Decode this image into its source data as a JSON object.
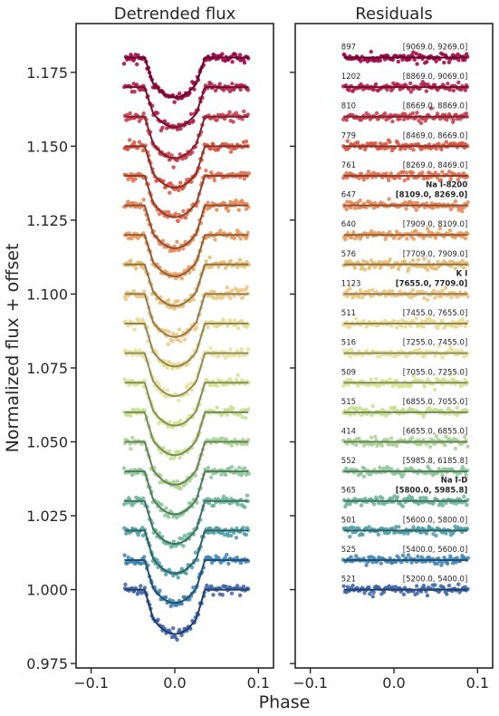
{
  "figure": {
    "ylabel": "Normalized flux + offset",
    "xlabel": "Phase"
  },
  "chart_data": [
    {
      "type": "scatter",
      "title": "Detrended flux",
      "xlim": [
        -0.118,
        0.118
      ],
      "ylim": [
        0.9735,
        1.1915
      ],
      "xticks": [
        -0.1,
        0.0,
        0.1
      ],
      "xtick_labels": [
        "−0.1",
        "0.0",
        "0.1"
      ],
      "yticks": [
        0.975,
        1.0,
        1.025,
        1.05,
        1.075,
        1.1,
        1.125,
        1.15,
        1.175
      ],
      "ytick_labels": [
        "0.975",
        "1.000",
        "1.025",
        "1.050",
        "1.075",
        "1.100",
        "1.125",
        "1.150",
        "1.175"
      ],
      "phase_range": [
        -0.06,
        0.088
      ],
      "transit": {
        "t1": -0.036,
        "t2": -0.026,
        "t3": 0.026,
        "t4": 0.036
      },
      "grid": false
    },
    {
      "type": "scatter",
      "title": "Residuals",
      "xlim": [
        -0.118,
        0.118
      ],
      "ylim": [
        0.9735,
        1.1915
      ],
      "xticks": [
        -0.1,
        0.0,
        0.1
      ],
      "xtick_labels": [
        "−0.1",
        "0.0",
        "0.1"
      ],
      "phase_range": [
        -0.06,
        0.088
      ],
      "grid": false
    }
  ],
  "series": [
    {
      "offset": 1.18,
      "depth": 0.0135,
      "rms": 897,
      "wavelength": "[9069.0, 9269.0]",
      "color": "#9e0142"
    },
    {
      "offset": 1.17,
      "depth": 0.0135,
      "rms": 1202,
      "wavelength": "[8869.0, 9069.0]",
      "color": "#b31b47"
    },
    {
      "offset": 1.16,
      "depth": 0.014,
      "rms": 810,
      "wavelength": "[8669.0, 8869.0]",
      "color": "#c8394a"
    },
    {
      "offset": 1.15,
      "depth": 0.014,
      "rms": 779,
      "wavelength": "[8469.0, 8669.0]",
      "color": "#d8533e"
    },
    {
      "offset": 1.14,
      "depth": 0.014,
      "rms": 761,
      "wavelength": "[8269.0, 8469.0]",
      "color": "#e26a48"
    },
    {
      "offset": 1.13,
      "depth": 0.0145,
      "rms": 647,
      "wavelength": "[8109.0, 8269.0]",
      "color": "#e58450",
      "feature": "Na I-8200"
    },
    {
      "offset": 1.12,
      "depth": 0.014,
      "rms": 640,
      "wavelength": "[7909.0, 8109.0]",
      "color": "#ea9a58"
    },
    {
      "offset": 1.11,
      "depth": 0.014,
      "rms": 576,
      "wavelength": "[7709.0, 7909.0]",
      "color": "#e8ba6c"
    },
    {
      "offset": 1.1,
      "depth": 0.0145,
      "rms": 1123,
      "wavelength": "[7655.0, 7709.0]",
      "color": "#edc680",
      "feature": "K I"
    },
    {
      "offset": 1.09,
      "depth": 0.0145,
      "rms": 511,
      "wavelength": "[7455.0, 7655.0]",
      "color": "#e9d98e"
    },
    {
      "offset": 1.08,
      "depth": 0.0145,
      "rms": 516,
      "wavelength": "[7255.0, 7455.0]",
      "color": "#e6e39a"
    },
    {
      "offset": 1.07,
      "depth": 0.0145,
      "rms": 509,
      "wavelength": "[7055.0, 7255.0]",
      "color": "#d6e392"
    },
    {
      "offset": 1.06,
      "depth": 0.0145,
      "rms": 515,
      "wavelength": "[6855.0, 7055.0]",
      "color": "#c4df8e"
    },
    {
      "offset": 1.05,
      "depth": 0.0145,
      "rms": 414,
      "wavelength": "[6655.0, 6855.0]",
      "color": "#a8d290"
    },
    {
      "offset": 1.04,
      "depth": 0.0145,
      "rms": 552,
      "wavelength": "[5985.8, 6185.8]",
      "color": "#88c596"
    },
    {
      "offset": 1.03,
      "depth": 0.0145,
      "rms": 565,
      "wavelength": "[5800.0, 5985.8]",
      "color": "#68b49a",
      "feature": "Na I-D"
    },
    {
      "offset": 1.02,
      "depth": 0.0145,
      "rms": 501,
      "wavelength": "[5600.0, 5800.0]",
      "color": "#4c9ea6"
    },
    {
      "offset": 1.01,
      "depth": 0.0145,
      "rms": 525,
      "wavelength": "[5400.0, 5600.0]",
      "color": "#3a83b4"
    },
    {
      "offset": 1.0,
      "depth": 0.015,
      "rms": 521,
      "wavelength": "[5200.0, 5400.0]",
      "color": "#3a63a8"
    }
  ]
}
